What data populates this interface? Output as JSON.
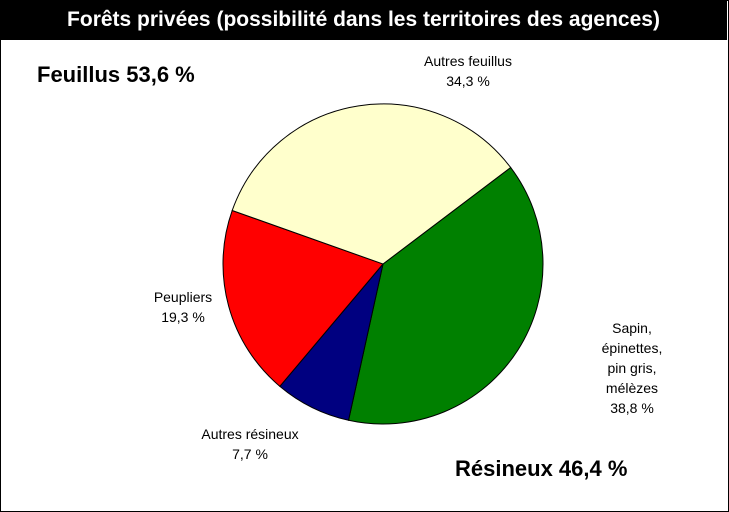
{
  "chart_data": {
    "type": "pie",
    "title": "Forêts privées (possibilité dans les territoires des agences)",
    "categories": [
      "Sapin, épinettes,\npin  gris, mélèzes",
      "Autres résineux",
      "Peupliers",
      "Autres feuillus"
    ],
    "values": [
      38.8,
      7.7,
      19.3,
      34.3
    ],
    "value_labels": [
      "38,8 %",
      "7,7 %",
      "19,3 %",
      "34,3 %"
    ],
    "colors": [
      "#008000",
      "#000080",
      "#ff0000",
      "#ffffcc"
    ],
    "annotations": [
      "Feuillus 53,6 %",
      "Résineux 46,4 %"
    ]
  }
}
